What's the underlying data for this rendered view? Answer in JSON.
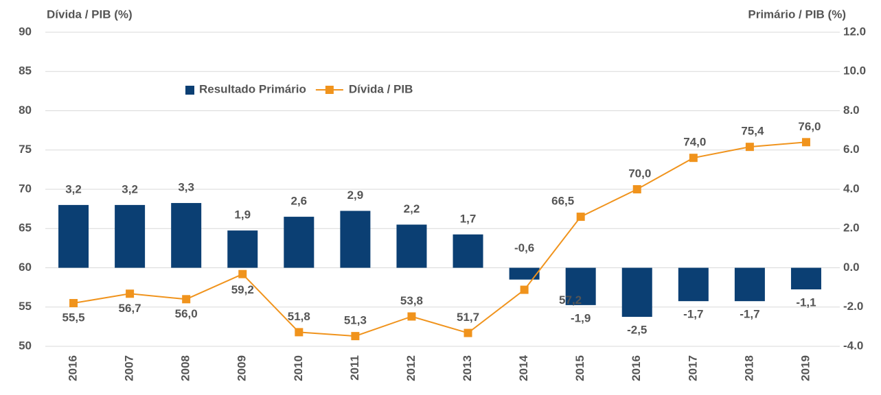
{
  "chart_data": {
    "type": "bar_line",
    "y_title": "Dívida / PIB (%)",
    "y2_title": "Primário / PIB (%)",
    "categories": [
      "2016",
      "2007",
      "2008",
      "2009",
      "2010",
      "2011",
      "2012",
      "2013",
      "2014",
      "2015",
      "2016",
      "2017",
      "2018",
      "2019"
    ],
    "series": [
      {
        "name": "Resultado Primário",
        "type": "bar",
        "axis": "y2",
        "color": "#0b3f73",
        "values": [
          3.2,
          3.2,
          3.3,
          1.9,
          2.6,
          2.9,
          2.2,
          1.7,
          -0.6,
          -1.9,
          -2.5,
          -1.7,
          -1.7,
          -1.1
        ],
        "value_labels": [
          "3,2",
          "3,2",
          "3,3",
          "1,9",
          "2,6",
          "2,9",
          "2,2",
          "1,7",
          "-0,6",
          "-1,9",
          "-2,5",
          "-1,7",
          "-1,7",
          "-1,1"
        ]
      },
      {
        "name": "Dívida / PIB",
        "type": "line",
        "axis": "y",
        "color": "#f0931c",
        "values": [
          55.5,
          56.7,
          56.0,
          59.2,
          51.8,
          51.3,
          53.8,
          51.7,
          57.2,
          66.5,
          70.0,
          74.0,
          75.4,
          76.0
        ],
        "value_labels": [
          "55,5",
          "56,7",
          "56,0",
          "59,2",
          "51,8",
          "51,3",
          "53,8",
          "51,7",
          "57,2",
          "66,5",
          "70,0",
          "74,0",
          "75,4",
          "76,0"
        ]
      }
    ],
    "ylim": [
      50,
      90
    ],
    "yticks": [
      50,
      55,
      60,
      65,
      70,
      75,
      80,
      85,
      90
    ],
    "y2lim": [
      -4,
      12
    ],
    "y2ticks": [
      {
        "value": -4,
        "label": "-4.0"
      },
      {
        "value": -2,
        "label": "-2.0"
      },
      {
        "value": 0,
        "label": "0.0"
      },
      {
        "value": 2,
        "label": "2.0"
      },
      {
        "value": 4,
        "label": "4.0"
      },
      {
        "value": 6,
        "label": "6.0"
      },
      {
        "value": 8,
        "label": "8.0"
      },
      {
        "value": 10,
        "label": "10.0"
      },
      {
        "value": 12,
        "label": "12.0"
      }
    ],
    "grid": true
  }
}
